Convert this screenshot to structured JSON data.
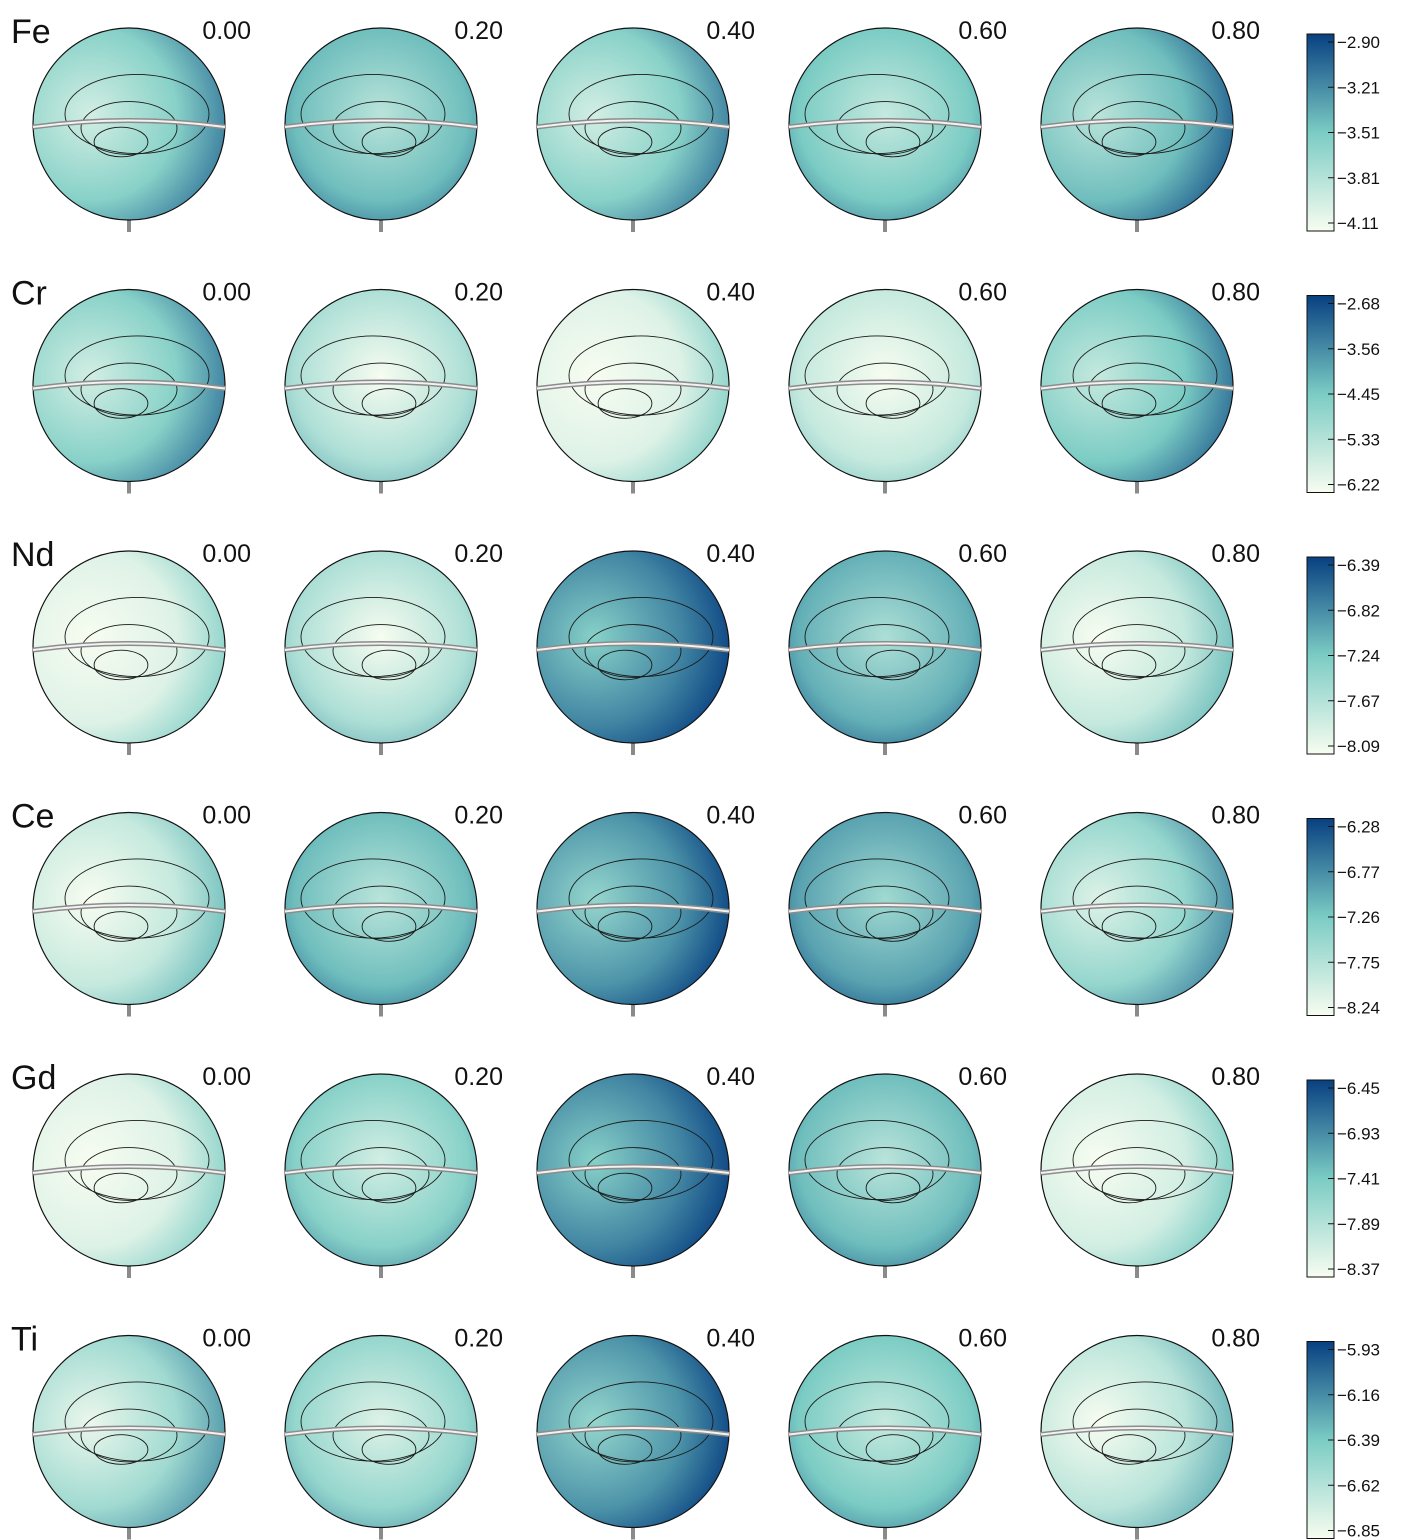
{
  "chart_data": {
    "type": "heatmap",
    "phases": [
      "0.00",
      "0.20",
      "0.40",
      "0.60",
      "0.80"
    ],
    "colormap": {
      "name": "GnBu",
      "low_color": "#f7fcf0",
      "mid_color": "#7bccc4",
      "high_color": "#084081"
    },
    "rows": [
      {
        "element": "Fe",
        "colorbar_ticks": [
          "−2.90",
          "−3.21",
          "−3.51",
          "−3.81",
          "−4.11"
        ],
        "colorbar_range": [
          -4.11,
          -2.9
        ],
        "mean_level_per_phase": [
          0.45,
          0.55,
          0.45,
          0.5,
          0.55
        ]
      },
      {
        "element": "Cr",
        "colorbar_ticks": [
          "−2.68",
          "−3.56",
          "−4.45",
          "−5.33",
          "−6.22"
        ],
        "colorbar_range": [
          -6.22,
          -2.68
        ],
        "mean_level_per_phase": [
          0.45,
          0.3,
          0.1,
          0.2,
          0.5
        ]
      },
      {
        "element": "Nd",
        "colorbar_ticks": [
          "−6.39",
          "−6.82",
          "−7.24",
          "−7.67",
          "−8.09"
        ],
        "colorbar_range": [
          -8.09,
          -6.39
        ],
        "mean_level_per_phase": [
          0.1,
          0.3,
          0.75,
          0.6,
          0.2
        ]
      },
      {
        "element": "Ce",
        "colorbar_ticks": [
          "−6.28",
          "−6.77",
          "−7.26",
          "−7.75",
          "−8.24"
        ],
        "colorbar_range": [
          -8.24,
          -6.28
        ],
        "mean_level_per_phase": [
          0.2,
          0.55,
          0.7,
          0.65,
          0.4
        ]
      },
      {
        "element": "Gd",
        "colorbar_ticks": [
          "−6.45",
          "−6.93",
          "−7.41",
          "−7.89",
          "−8.37"
        ],
        "colorbar_range": [
          -8.37,
          -6.45
        ],
        "mean_level_per_phase": [
          0.1,
          0.45,
          0.75,
          0.55,
          0.15
        ]
      },
      {
        "element": "Ti",
        "colorbar_ticks": [
          "−5.93",
          "−6.16",
          "−6.39",
          "−6.62",
          "−6.85"
        ],
        "colorbar_range": [
          -6.85,
          -5.93
        ],
        "mean_level_per_phase": [
          0.35,
          0.4,
          0.7,
          0.5,
          0.25
        ]
      }
    ]
  }
}
